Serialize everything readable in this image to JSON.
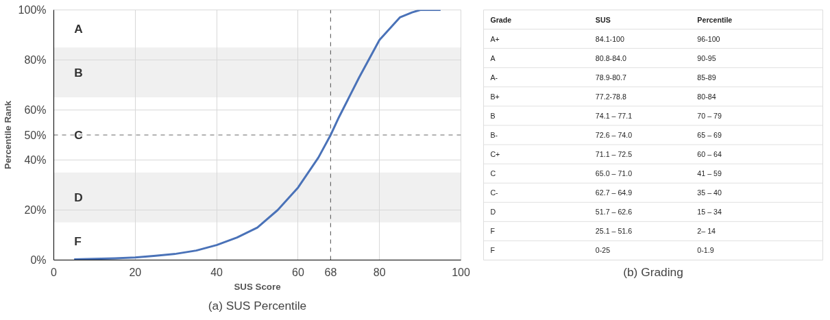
{
  "chart_data": [
    {
      "type": "line",
      "title": "(a) SUS Percentile",
      "xlabel": "SUS Score",
      "ylabel": "Percentile Rank",
      "x": [
        5,
        10,
        15,
        20,
        25,
        30,
        35,
        40,
        45,
        50,
        55,
        60,
        65,
        68,
        70,
        75,
        80,
        85,
        88,
        90,
        95
      ],
      "series": [
        {
          "color": "#4a72b8",
          "values": [
            0.3,
            0.5,
            0.7,
            1,
            1.7,
            2.5,
            3.8,
            6,
            9,
            13,
            20,
            29,
            41,
            50,
            57,
            73,
            88,
            97,
            99,
            100,
            100
          ]
        }
      ],
      "xlim": [
        0,
        100
      ],
      "ylim": [
        0,
        100
      ],
      "xticks": [
        0,
        20,
        40,
        60,
        80,
        100
      ],
      "yticks": [
        {
          "value": 0,
          "label": "0%"
        },
        {
          "value": 20,
          "label": "20%"
        },
        {
          "value": 40,
          "label": "40%"
        },
        {
          "value": 60,
          "label": "60%"
        },
        {
          "value": 80,
          "label": "80%"
        },
        {
          "value": 100,
          "label": "100%"
        }
      ],
      "grid": true,
      "marker": "none",
      "line_style": "solid",
      "ref_lines": [
        {
          "axis": "x",
          "value": 68,
          "label": "68",
          "color": "#666666",
          "line_style": "dashed"
        },
        {
          "axis": "y",
          "value": 50,
          "label": "50%",
          "color": "#666666",
          "line_style": "dashed"
        }
      ],
      "bands": [
        {
          "axis": "y",
          "from": 85,
          "to": 100,
          "color": "#ffffff",
          "label": "A"
        },
        {
          "axis": "y",
          "from": 65,
          "to": 85,
          "color": "#f0f0f0",
          "label": "B"
        },
        {
          "axis": "y",
          "from": 35,
          "to": 65,
          "color": "#ffffff",
          "label": "C"
        },
        {
          "axis": "y",
          "from": 15,
          "to": 35,
          "color": "#f0f0f0",
          "label": "D"
        },
        {
          "axis": "y",
          "from": 0,
          "to": 15,
          "color": "#ffffff",
          "label": "F"
        }
      ]
    },
    {
      "type": "other",
      "title": "(b) Grading",
      "categories": [
        "Grade",
        "SUS",
        "Percentile"
      ],
      "annotations": [
        "A+",
        "84.1-100",
        "96-100",
        "A",
        "80.8-84.0",
        "90-95",
        "A-",
        "78.9-80.7",
        "85-89",
        "B+",
        "77.2-78.8",
        "80-84",
        "B",
        "74.1 – 77.1",
        "70 – 79",
        "B-",
        "72.6 – 74.0",
        "65 – 69",
        "C+",
        "71.1 – 72.5",
        "60 – 64",
        "C",
        "65.0 – 71.0",
        "41 – 59",
        "C-",
        "62.7 – 64.9",
        "35 – 40",
        "D",
        "51.7 – 62.6",
        "15 – 34",
        "F",
        "25.1 – 51.6",
        "2– 14",
        "F",
        "0-25",
        "0-1.9"
      ]
    }
  ]
}
